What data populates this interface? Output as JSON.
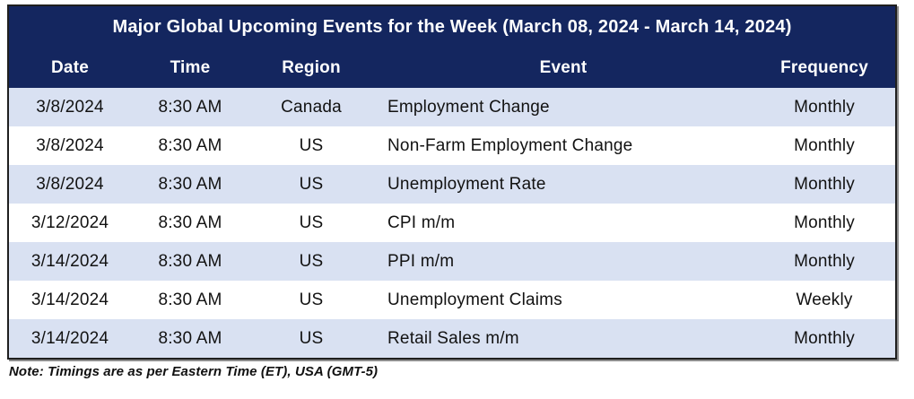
{
  "chart_data": {
    "type": "table",
    "title": "Major Global Upcoming Events for the Week (March 08, 2024 - March 14, 2024)",
    "columns": [
      "Date",
      "Time",
      "Region",
      "Event",
      "Frequency"
    ],
    "rows": [
      [
        "3/8/2024",
        "8:30 AM",
        "Canada",
        "Employment Change",
        "Monthly"
      ],
      [
        "3/8/2024",
        "8:30 AM",
        "US",
        "Non-Farm Employment Change",
        "Monthly"
      ],
      [
        "3/8/2024",
        "8:30 AM",
        "US",
        "Unemployment Rate",
        "Monthly"
      ],
      [
        "3/12/2024",
        "8:30 AM",
        "US",
        "CPI m/m",
        "Monthly"
      ],
      [
        "3/14/2024",
        "8:30 AM",
        "US",
        "PPI m/m",
        "Monthly"
      ],
      [
        "3/14/2024",
        "8:30 AM",
        "US",
        "Unemployment Claims",
        "Weekly"
      ],
      [
        "3/14/2024",
        "8:30 AM",
        "US",
        "Retail Sales m/m",
        "Monthly"
      ]
    ],
    "note": "Note: Timings are as per Eastern Time (ET), USA (GMT-5)",
    "layout_hints": {
      "row_striping": "first data row shaded, alternating",
      "event_column_alignment": "left",
      "other_columns_alignment": "center"
    }
  },
  "colors": {
    "header_bg": "#14265F",
    "header_text": "#FFFFFF",
    "row_alt_bg": "#D9E1F2",
    "row_bg": "#FFFFFF",
    "body_text": "#121212",
    "border": "#1F1F1F"
  }
}
